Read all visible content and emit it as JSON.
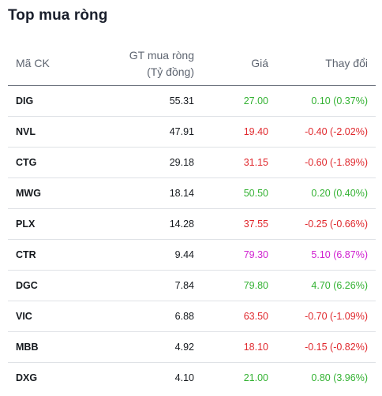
{
  "title": "Top mua ròng",
  "columns": {
    "code": "Mã CK",
    "value_line1": "GT mua ròng",
    "value_line2": "(Tỷ đồng)",
    "price": "Giá",
    "change": "Thay đổi"
  },
  "colors": {
    "up": "#34b233",
    "down": "#e0282d",
    "ceiling": "#d020d0"
  },
  "rows": [
    {
      "code": "DIG",
      "value": "55.31",
      "price": "27.00",
      "change": "0.10 (0.37%)",
      "trend": "up"
    },
    {
      "code": "NVL",
      "value": "47.91",
      "price": "19.40",
      "change": "-0.40 (-2.02%)",
      "trend": "down"
    },
    {
      "code": "CTG",
      "value": "29.18",
      "price": "31.15",
      "change": "-0.60 (-1.89%)",
      "trend": "down"
    },
    {
      "code": "MWG",
      "value": "18.14",
      "price": "50.50",
      "change": "0.20 (0.40%)",
      "trend": "up"
    },
    {
      "code": "PLX",
      "value": "14.28",
      "price": "37.55",
      "change": "-0.25 (-0.66%)",
      "trend": "down"
    },
    {
      "code": "CTR",
      "value": "9.44",
      "price": "79.30",
      "change": "5.10 (6.87%)",
      "trend": "ceil"
    },
    {
      "code": "DGC",
      "value": "7.84",
      "price": "79.80",
      "change": "4.70 (6.26%)",
      "trend": "up"
    },
    {
      "code": "VIC",
      "value": "6.88",
      "price": "63.50",
      "change": "-0.70 (-1.09%)",
      "trend": "down"
    },
    {
      "code": "MBB",
      "value": "4.92",
      "price": "18.10",
      "change": "-0.15 (-0.82%)",
      "trend": "down"
    },
    {
      "code": "DXG",
      "value": "4.10",
      "price": "21.00",
      "change": "0.80 (3.96%)",
      "trend": "up"
    }
  ]
}
